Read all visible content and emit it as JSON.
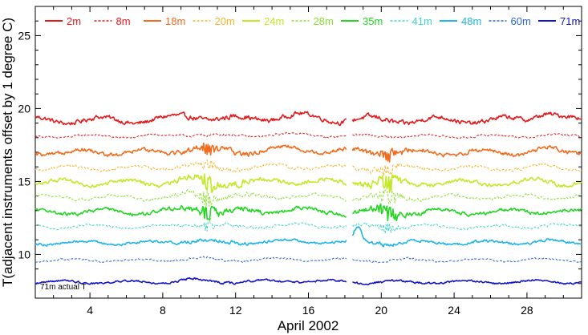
{
  "chart_data": {
    "type": "line",
    "xlabel": "April 2002",
    "ylabel": "T(adjacent instruments offset by 1 degree C)",
    "xlim": [
      1,
      31
    ],
    "ylim": [
      7,
      27
    ],
    "xticks": [
      4,
      8,
      12,
      16,
      20,
      24,
      28
    ],
    "yticks": [
      10,
      15,
      20,
      25
    ],
    "annotation": "71m actual T",
    "gap": [
      18.1,
      18.4
    ],
    "series": [
      {
        "name": "2m",
        "color": "#e31a1c",
        "dash": "solid",
        "width": 1.6,
        "base": 19.2,
        "amp": 0.9
      },
      {
        "name": "8m",
        "color": "#e31a1c",
        "dash": "dashed",
        "width": 1.0,
        "base": 18.1,
        "amp": 0.4
      },
      {
        "name": "18m",
        "color": "#f26b1d",
        "dash": "solid",
        "width": 1.6,
        "base": 17.0,
        "amp": 0.8
      },
      {
        "name": "20m",
        "color": "#f6b52a",
        "dash": "dashed",
        "width": 1.0,
        "base": 15.9,
        "amp": 0.6
      },
      {
        "name": "24m",
        "color": "#c4e82b",
        "dash": "solid",
        "width": 1.6,
        "base": 14.9,
        "amp": 0.8
      },
      {
        "name": "28m",
        "color": "#8be02f",
        "dash": "dashed",
        "width": 1.0,
        "base": 13.9,
        "amp": 0.6
      },
      {
        "name": "35m",
        "color": "#22d622",
        "dash": "solid",
        "width": 1.6,
        "base": 12.9,
        "amp": 0.7
      },
      {
        "name": "41m",
        "color": "#3fd6c8",
        "dash": "dashed",
        "width": 1.0,
        "base": 11.9,
        "amp": 0.5
      },
      {
        "name": "48m",
        "color": "#1fb5e8",
        "dash": "solid",
        "width": 1.6,
        "base": 10.8,
        "amp": 0.5
      },
      {
        "name": "60m",
        "color": "#2a63d6",
        "dash": "dashed",
        "width": 1.0,
        "base": 9.6,
        "amp": 0.4
      },
      {
        "name": "71m",
        "color": "#1414c8",
        "dash": "solid",
        "width": 1.6,
        "base": 8.1,
        "amp": 0.4
      }
    ]
  }
}
